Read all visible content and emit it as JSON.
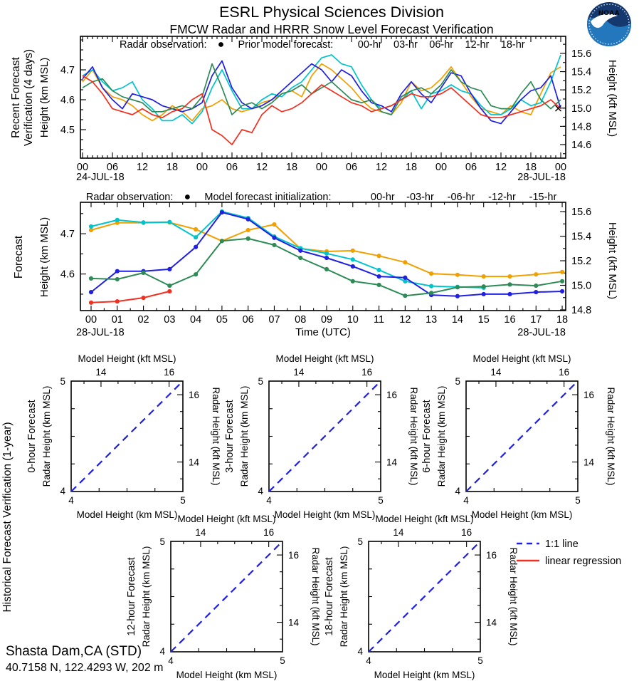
{
  "header": {
    "title": "ESRL Physical Sciences Division",
    "subtitle": "FMCW Radar and HRRR Snow Level Forecast Verification"
  },
  "noaa_logo": {
    "label": "NOAA"
  },
  "colors": {
    "orange": "#F0A000",
    "cyan": "#00C4CC",
    "blue": "#2020E0",
    "green": "#2E8B57",
    "red": "#F03020",
    "label_blue": "#1515FF",
    "axis_black": "#000000",
    "noaa_navy": "#15396F",
    "noaa_blue": "#2277BD"
  },
  "chart_data": [
    {
      "id": "recent_verification",
      "type": "line",
      "side_title": [
        "Recent Forecast",
        "Verification (4 days)"
      ],
      "ylabel_left": "Height (km MSL)",
      "ylabel_right": "Height (kft MSL)",
      "yticks_km": [
        4.5,
        4.6,
        4.7
      ],
      "yticks_kft": [
        14.6,
        14.8,
        15.0,
        15.2,
        15.4,
        15.6
      ],
      "ylim_km": [
        4.405,
        4.812
      ],
      "x_hours": 96,
      "x_step_hours": 2,
      "xtick_labels": [
        "00",
        "06",
        "12",
        "18",
        "00",
        "06",
        "12",
        "18",
        "00",
        "06",
        "12",
        "18",
        "00",
        "06",
        "12",
        "18",
        "00"
      ],
      "date_left": "24-JUL-18",
      "date_right": "28-JUL-18",
      "legend": {
        "radar_label": "Radar observation:",
        "marker": "●",
        "series_label": "Prior model forecast:"
      },
      "radar_observation_marker": {
        "hour": 95.5,
        "km": 4.571,
        "glyph": "x"
      },
      "series": [
        {
          "name": "00-hr",
          "color": "#F0A000",
          "values": [
            4.66,
            4.7,
            4.64,
            4.61,
            4.6,
            4.58,
            4.55,
            4.53,
            4.55,
            4.58,
            4.56,
            4.53,
            4.57,
            4.58,
            4.6,
            4.57,
            4.56,
            4.57,
            4.59,
            4.6,
            4.62,
            4.63,
            4.61,
            4.68,
            4.72,
            4.7,
            4.67,
            4.64,
            4.6,
            4.57,
            4.56,
            4.55,
            4.59,
            4.66,
            4.63,
            4.64,
            4.67,
            4.71,
            4.66,
            4.61,
            4.57,
            4.56,
            4.55,
            4.58,
            4.56,
            4.55,
            4.62,
            4.69,
            4.71
          ]
        },
        {
          "name": "03-hr",
          "color": "#00C4CC",
          "values": [
            4.68,
            4.7,
            4.66,
            4.63,
            4.64,
            4.66,
            4.6,
            4.57,
            4.53,
            4.53,
            4.55,
            4.52,
            4.56,
            4.64,
            4.7,
            4.63,
            4.57,
            4.57,
            4.6,
            4.62,
            4.61,
            4.64,
            4.66,
            4.7,
            4.74,
            4.75,
            4.72,
            4.71,
            4.65,
            4.6,
            4.57,
            4.58,
            4.6,
            4.63,
            4.57,
            4.62,
            4.63,
            4.65,
            4.63,
            4.62,
            4.58,
            4.55,
            4.55,
            4.57,
            4.6,
            4.58,
            4.59,
            4.66,
            4.75
          ]
        },
        {
          "name": "06-hr",
          "color": "#2020E0",
          "values": [
            4.67,
            4.71,
            4.64,
            4.6,
            4.57,
            4.62,
            4.61,
            4.6,
            4.58,
            4.57,
            4.56,
            4.57,
            4.59,
            4.68,
            4.73,
            4.64,
            4.59,
            4.57,
            4.58,
            4.6,
            4.63,
            4.66,
            4.69,
            4.72,
            4.7,
            4.66,
            4.7,
            4.68,
            4.63,
            4.59,
            4.58,
            4.56,
            4.62,
            4.66,
            4.62,
            4.59,
            4.64,
            4.69,
            4.68,
            4.62,
            4.57,
            4.53,
            4.52,
            4.56,
            4.6,
            4.63,
            4.64,
            4.68,
            4.57
          ]
        },
        {
          "name": "12-hr",
          "color": "#2E8B57",
          "values": [
            4.64,
            4.66,
            4.67,
            4.63,
            4.61,
            4.6,
            4.59,
            4.56,
            4.56,
            4.57,
            4.58,
            4.57,
            4.61,
            4.72,
            4.64,
            4.55,
            4.58,
            4.59,
            4.57,
            4.59,
            4.62,
            4.63,
            4.65,
            4.62,
            4.64,
            4.66,
            4.63,
            4.6,
            4.59,
            4.6,
            4.56,
            4.55,
            4.61,
            4.63,
            4.64,
            4.62,
            4.65,
            4.7,
            4.66,
            4.64,
            4.63,
            4.58,
            4.57,
            4.57,
            4.62,
            4.66,
            4.6,
            4.57,
            4.6
          ]
        },
        {
          "name": "18-hr",
          "color": "#F03020",
          "values": [
            4.68,
            4.66,
            4.62,
            4.57,
            4.56,
            4.55,
            4.57,
            4.55,
            4.54,
            4.56,
            4.57,
            4.6,
            4.62,
            4.5,
            4.48,
            4.45,
            4.5,
            4.49,
            4.55,
            4.58,
            4.56,
            4.57,
            4.59,
            4.62,
            4.65,
            4.63,
            4.61,
            4.59,
            4.58,
            4.56,
            4.57,
            4.58,
            4.6,
            4.62,
            4.61,
            4.61,
            4.62,
            4.64,
            4.61,
            4.58,
            4.55,
            4.54,
            4.54,
            4.55,
            4.56,
            4.57,
            4.58,
            4.6,
            4.57
          ]
        }
      ]
    },
    {
      "id": "forecast",
      "type": "line",
      "side_title": [
        "Forecast"
      ],
      "ylabel_left": "Height (km MSL)",
      "ylabel_right": "Height (kft MSL)",
      "xlabel": "Time (UTC)",
      "yticks_km": [
        4.6,
        4.7
      ],
      "yticks_kft": [
        14.8,
        15.0,
        15.2,
        15.4,
        15.6
      ],
      "ylim_km": [
        4.509,
        4.778
      ],
      "x_hours": 18,
      "x_step_hours": 1,
      "xtick_labels": [
        "00",
        "01",
        "02",
        "03",
        "04",
        "05",
        "06",
        "07",
        "08",
        "09",
        "10",
        "11",
        "12",
        "13",
        "14",
        "15",
        "16",
        "17",
        "18"
      ],
      "date_left": "28-JUL-18",
      "date_right": "28-JUL-18",
      "legend": {
        "radar_label": "Radar observation:",
        "marker": "●",
        "series_label": "Model forecast initialization:"
      },
      "series": [
        {
          "name": "00-hr",
          "color": "#F0A000",
          "values": [
            4.709,
            4.727,
            4.727,
            4.728,
            4.711,
            4.682,
            4.709,
            4.723,
            4.663,
            4.656,
            4.658,
            4.645,
            4.629,
            4.601,
            4.598,
            4.594,
            4.594,
            4.599,
            4.605
          ]
        },
        {
          "name": "-03-hr",
          "color": "#00C4CC",
          "values": [
            4.718,
            4.734,
            4.728,
            4.729,
            4.691,
            4.755,
            4.739,
            4.693,
            4.664,
            4.651,
            4.636,
            4.61,
            4.582,
            4.57,
            4.568,
            4.566
          ]
        },
        {
          "name": "-06-hr",
          "color": "#2020E0",
          "values": [
            4.555,
            4.607,
            4.607,
            4.612,
            4.667,
            4.753,
            4.736,
            4.69,
            4.658,
            4.64,
            4.619,
            4.594,
            4.591,
            4.548,
            4.545,
            4.55,
            4.55,
            4.555,
            4.557
          ]
        },
        {
          "name": "-12-hr",
          "color": "#2E8B57",
          "values": [
            4.589,
            4.587,
            4.603,
            4.571,
            4.599,
            4.682,
            4.688,
            4.672,
            4.64,
            4.612,
            4.582,
            4.573,
            4.546,
            4.553,
            4.567,
            4.569,
            4.574,
            4.571,
            4.582
          ]
        },
        {
          "name": "-15-hr",
          "color": "#F03020",
          "values": [
            4.529,
            4.532,
            4.541,
            4.557
          ]
        }
      ]
    }
  ],
  "scatter": {
    "panel_axis": {
      "top_label": "Model Height (kft MSL)",
      "bottom_label": "Model Height (km MSL)",
      "left_label": "Radar Height (km MSL)",
      "right_label": "Radar Height (kft MSL)",
      "km_ticks": [
        4,
        5
      ],
      "kft_ticks": [
        14,
        16
      ],
      "km_range": [
        4,
        5
      ],
      "kft_range": [
        13.1234,
        16.4042
      ]
    },
    "panels": [
      {
        "title": "0-hour Forecast"
      },
      {
        "title": "3-hour Forecast"
      },
      {
        "title": "6-hour Forecast"
      },
      {
        "title": "12-hour Forecast"
      },
      {
        "title": "18-hour Forecast"
      }
    ],
    "line_1to1": {
      "label": "1:1 line",
      "color": "#2020E0"
    },
    "regression": {
      "label": "linear regression",
      "color": "#F03020"
    }
  },
  "section_label": "Historical Forecast Verification (1-year)",
  "footer": {
    "station": "Shasta Dam,CA (STD)",
    "coords": "40.7158 N, 122.4293 W, 202 m"
  }
}
